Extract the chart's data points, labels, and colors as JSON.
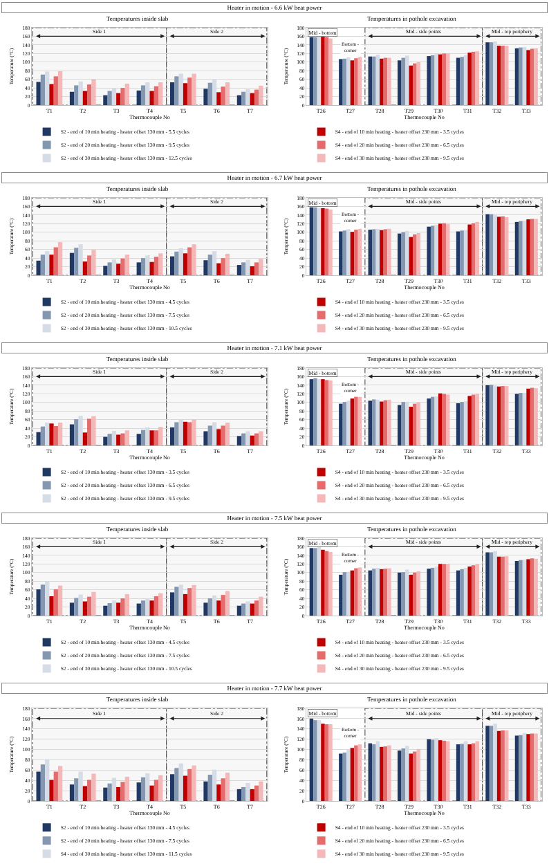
{
  "chart_data": [
    {
      "type": "bar",
      "title": "Heater in motion - 6.6 kW heat power",
      "subtitle": "Temperatures inside slab",
      "xlabel": "Thermocouple No",
      "ylabel": "Temperature (°C)",
      "categories": [
        "T1",
        "T2",
        "T3",
        "T4",
        "T5",
        "T6",
        "T7"
      ],
      "ylim": [
        0,
        180
      ],
      "yticks": [
        0,
        20,
        40,
        60,
        80,
        100,
        120,
        140,
        160,
        180
      ],
      "grid": "y",
      "legend": "bottom",
      "bands": [
        {
          "axis": "x",
          "from": "T1",
          "to": "T4",
          "label": "Side 1",
          "color": "#f7f7f7"
        },
        {
          "axis": "x",
          "from": "T5",
          "to": "T7",
          "label": "Side 2",
          "color": "#f7f7f7"
        }
      ],
      "series": [
        {
          "name": "S2 - end of 10 min heating - heater offset 130 mm - 5.5 cycles",
          "color": "#203864",
          "values": [
            54,
            31,
            23,
            34,
            53,
            38,
            23
          ]
        },
        {
          "name": "S2 - end of 20 min heating - heater offset 130 mm - 9.5 cycles",
          "color": "#8497b0",
          "values": [
            71,
            46,
            33,
            46,
            67,
            52,
            31
          ]
        },
        {
          "name": "S2 - end of 30 min heating - heater offset 130 mm - 12.5 cycles",
          "color": "#d6dce5",
          "values": [
            78,
            55,
            39,
            53,
            73,
            59,
            37
          ]
        },
        {
          "color": "#c00000",
          "values": [
            49,
            33,
            28,
            33,
            51,
            30,
            28
          ]
        },
        {
          "color": "#e46c6c",
          "values": [
            67,
            48,
            40,
            44,
            64,
            43,
            36
          ]
        },
        {
          "color": "#f4b8b8",
          "values": [
            79,
            60,
            50,
            53,
            73,
            53,
            45
          ]
        }
      ]
    },
    {
      "type": "bar",
      "title": "Temperatures in pothole excavation",
      "xlabel": "Thermocouple No",
      "ylabel": "Temperature (°C)",
      "categories": [
        "T26",
        "T27",
        "T28",
        "T29",
        "T30",
        "T31",
        "T32",
        "T33"
      ],
      "ylim": [
        0,
        180
      ],
      "yticks": [
        0,
        20,
        40,
        60,
        80,
        100,
        120,
        140,
        160,
        180
      ],
      "grid": "y",
      "legend": "bottom",
      "annotations": [
        "Mid - bottom",
        {
          "text": "Bottom - corner",
          "x": "T27",
          "y": 118
        }
      ],
      "bands": [
        {
          "axis": "x",
          "from": "T28",
          "to": "T31",
          "label": "Mid - side points",
          "color": "#f7f7f7"
        },
        {
          "axis": "x",
          "from": "T32",
          "to": "T33",
          "label": "Mid - top periphery",
          "color": "#f7f7f7"
        }
      ],
      "series": [
        {
          "color": "#203864",
          "values": [
            158,
            107,
            113,
            104,
            114,
            110,
            146,
            132
          ]
        },
        {
          "color": "#8497b0",
          "values": [
            158,
            108,
            113,
            110,
            116,
            112,
            146,
            134
          ]
        },
        {
          "color": "#d6dce5",
          "values": [
            160,
            111,
            117,
            115,
            120,
            116,
            148,
            135
          ]
        },
        {
          "name": "S4 - end of 10 min heating - heater offset 230 mm - 3.5 cycles",
          "color": "#c00000",
          "values": [
            159,
            104,
            108,
            92,
            118,
            122,
            138,
            128
          ]
        },
        {
          "name": "S4 - end of 20 min heating - heater offset 230 mm - 6.5 cycles",
          "color": "#e46c6c",
          "values": [
            158,
            109,
            110,
            97,
            120,
            124,
            138,
            131
          ]
        },
        {
          "name": "S4 - end of 30 min heating - heater offset 230 mm - 9.5 cycles",
          "color": "#f4b8b8",
          "values": [
            155,
            112,
            110,
            100,
            120,
            125,
            138,
            132
          ]
        }
      ]
    },
    {
      "type": "bar",
      "title": "Heater in motion - 6.7 kW heat power",
      "subtitle": "Temperatures inside slab",
      "xlabel": "Thermocouple No",
      "ylabel": "Temperature (°C)",
      "categories": [
        "T1",
        "T2",
        "T3",
        "T4",
        "T5",
        "T6",
        "T7"
      ],
      "ylim": [
        0,
        180
      ],
      "yticks": [
        0,
        20,
        40,
        60,
        80,
        100,
        120,
        140,
        160,
        180
      ],
      "grid": "y",
      "legend": "bottom",
      "bands": [
        {
          "axis": "x",
          "from": "T1",
          "to": "T4",
          "label": "Side 1",
          "color": "#f7f7f7"
        },
        {
          "axis": "x",
          "from": "T5",
          "to": "T7",
          "label": "Side 2",
          "color": "#f7f7f7"
        }
      ],
      "series": [
        {
          "name": "S2 - end of 10 min heating - heater offset 130 mm - 4.5 cycles",
          "color": "#203864",
          "values": [
            34,
            52,
            22,
            30,
            44,
            35,
            24
          ]
        },
        {
          "name": "S2 - end of 20 min heating - heater offset 130 mm - 7.5 cycles",
          "color": "#8497b0",
          "values": [
            48,
            64,
            30,
            40,
            55,
            48,
            30
          ]
        },
        {
          "name": "S2 - end of 30 min heating - heater offset 130 mm - 10.5 cycles",
          "color": "#d6dce5",
          "values": [
            56,
            72,
            37,
            46,
            63,
            56,
            36
          ]
        },
        {
          "color": "#c00000",
          "values": [
            48,
            32,
            27,
            31,
            51,
            28,
            21
          ]
        },
        {
          "color": "#e46c6c",
          "values": [
            65,
            46,
            39,
            43,
            65,
            40,
            30
          ]
        },
        {
          "color": "#f4b8b8",
          "values": [
            77,
            59,
            48,
            51,
            72,
            50,
            38
          ]
        }
      ]
    },
    {
      "type": "bar",
      "title": "Temperatures in pothole excavation",
      "xlabel": "Thermocouple No",
      "ylabel": "Temperature (°C)",
      "categories": [
        "T26",
        "T27",
        "T28",
        "T29",
        "T30",
        "T31",
        "T32",
        "T33"
      ],
      "ylim": [
        0,
        180
      ],
      "yticks": [
        0,
        20,
        40,
        60,
        80,
        100,
        120,
        140,
        160,
        180
      ],
      "grid": "y",
      "legend": "bottom",
      "annotations": [
        "Mid - bottom",
        {
          "text": "Bottom - corner",
          "x": "T27",
          "y": 118
        }
      ],
      "bands": [
        {
          "axis": "x",
          "from": "T28",
          "to": "T31",
          "label": "Mid - side points",
          "color": "#f7f7f7"
        },
        {
          "axis": "x",
          "from": "T32",
          "to": "T33",
          "label": "Mid - top periphery",
          "color": "#f7f7f7"
        }
      ],
      "series": [
        {
          "color": "#203864",
          "values": [
            158,
            102,
            106,
            97,
            113,
            102,
            142,
            124
          ]
        },
        {
          "color": "#8497b0",
          "values": [
            158,
            104,
            107,
            100,
            115,
            104,
            142,
            126
          ]
        },
        {
          "color": "#d6dce5",
          "values": [
            157,
            107,
            108,
            103,
            117,
            105,
            140,
            127
          ]
        },
        {
          "name": "S4 - end of 10 min heating - heater offset 230 mm - 3.5 cycles",
          "color": "#c00000",
          "values": [
            156,
            101,
            105,
            89,
            120,
            118,
            136,
            130
          ]
        },
        {
          "name": "S4 - end of 20 min heating - heater offset 230 mm - 6.5 cycles",
          "color": "#e46c6c",
          "values": [
            155,
            106,
            107,
            95,
            121,
            121,
            137,
            131
          ]
        },
        {
          "name": "S4 - end of 30 min heating - heater offset 230 mm - 9.5 cycles",
          "color": "#f4b8b8",
          "values": [
            153,
            108,
            108,
            98,
            119,
            124,
            135,
            131
          ]
        }
      ]
    },
    {
      "type": "bar",
      "title": "Heater in motion - 7.1 kW heat power",
      "subtitle": "Temperatures inside slab",
      "xlabel": "Thermocouple No",
      "ylabel": "Temperature (°C)",
      "categories": [
        "T1",
        "T2",
        "T3",
        "T4",
        "T5",
        "T6",
        "T7"
      ],
      "ylim": [
        0,
        180
      ],
      "yticks": [
        0,
        20,
        40,
        60,
        80,
        100,
        120,
        140,
        160,
        180
      ],
      "grid": "y",
      "legend": "bottom",
      "bands": [
        {
          "axis": "x",
          "from": "T1",
          "to": "T4",
          "label": "Side 1",
          "color": "#f7f7f7"
        },
        {
          "axis": "x",
          "from": "T5",
          "to": "T7",
          "label": "Side 2",
          "color": "#f7f7f7"
        }
      ],
      "series": [
        {
          "name": "S2 - end of 10 min heating - heater offset 130 mm - 3.5 cycles",
          "color": "#203864",
          "values": [
            31,
            49,
            20,
            27,
            42,
            33,
            22
          ]
        },
        {
          "name": "S2 - end of 20 min heating - heater offset 130 mm - 6.5 cycles",
          "color": "#8497b0",
          "values": [
            44,
            61,
            27,
            36,
            54,
            46,
            28
          ]
        },
        {
          "name": "S2 - end of 30 min heating - heater offset 130 mm - 9.5 cycles",
          "color": "#d6dce5",
          "values": [
            53,
            69,
            34,
            42,
            61,
            54,
            33
          ]
        },
        {
          "color": "#c00000",
          "values": [
            51,
            30,
            25,
            35,
            55,
            38,
            23
          ]
        },
        {
          "color": "#e46c6c",
          "values": [
            45,
            62,
            28,
            35,
            54,
            46,
            28
          ]
        },
        {
          "color": "#f4b8b8",
          "values": [
            53,
            68,
            35,
            43,
            60,
            53,
            33
          ]
        }
      ]
    },
    {
      "type": "bar",
      "title": "Temperatures in pothole excavation",
      "xlabel": "Thermocouple No",
      "ylabel": "Temperature (°C)",
      "categories": [
        "T26",
        "T27",
        "T28",
        "T29",
        "T30",
        "T31",
        "T32",
        "T33"
      ],
      "ylim": [
        0,
        180
      ],
      "yticks": [
        0,
        20,
        40,
        60,
        80,
        100,
        120,
        140,
        160,
        180
      ],
      "grid": "y",
      "legend": "bottom",
      "annotations": [
        "Mid - bottom",
        {
          "text": "Bottom - corner",
          "x": "T27",
          "y": 118
        }
      ],
      "bands": [
        {
          "axis": "x",
          "from": "T28",
          "to": "T31",
          "label": "Mid - side points",
          "color": "#f7f7f7"
        },
        {
          "axis": "x",
          "from": "T32",
          "to": "T33",
          "label": "Mid - top periphery",
          "color": "#f7f7f7"
        }
      ],
      "series": [
        {
          "color": "#203864",
          "values": [
            154,
            97,
            104,
            94,
            109,
            98,
            140,
            120
          ]
        },
        {
          "color": "#8497b0",
          "values": [
            156,
            101,
            107,
            101,
            113,
            101,
            141,
            122
          ]
        },
        {
          "color": "#d6dce5",
          "values": [
            154,
            104,
            106,
            102,
            114,
            103,
            139,
            122
          ]
        },
        {
          "name": "S4 - end of 10 min heating - heater offset 230 mm - 3.5 cycles",
          "color": "#c00000",
          "values": [
            154,
            109,
            102,
            90,
            121,
            115,
            137,
            132
          ]
        },
        {
          "name": "S4 - end of 20 min heating - heater offset 230 mm - 6.5 cycles",
          "color": "#e46c6c",
          "values": [
            152,
            113,
            105,
            97,
            120,
            118,
            138,
            134
          ]
        },
        {
          "name": "S4 - end of 30 min heating - heater offset 230 mm - 9.5 cycles",
          "color": "#f4b8b8",
          "values": [
            151,
            113,
            106,
            100,
            118,
            120,
            138,
            133
          ]
        }
      ]
    },
    {
      "type": "bar",
      "title": "Heater in motion - 7.5 kW heat power",
      "subtitle": "Temperatures inside slab",
      "xlabel": "Thermocouple No",
      "ylabel": "Temperature (°C)",
      "categories": [
        "T1",
        "T2",
        "T3",
        "T4",
        "T5",
        "T6",
        "T7"
      ],
      "ylim": [
        0,
        180
      ],
      "yticks": [
        0,
        20,
        40,
        60,
        80,
        100,
        120,
        140,
        160,
        180
      ],
      "grid": "y",
      "legend": "bottom",
      "bands": [
        {
          "axis": "x",
          "from": "T1",
          "to": "T4",
          "label": "Side 1",
          "color": "#f7f7f7"
        },
        {
          "axis": "x",
          "from": "T5",
          "to": "T7",
          "label": "Side 2",
          "color": "#f7f7f7"
        }
      ],
      "series": [
        {
          "name": "S2 - end of 10 min heating - heater offset 130 mm - 4.5 cycles",
          "color": "#203864",
          "values": [
            61,
            30,
            23,
            28,
            54,
            30,
            23
          ]
        },
        {
          "name": "S2 - end of 20 min heating - heater offset 130 mm - 7.5 cycles",
          "color": "#8497b0",
          "values": [
            72,
            41,
            29,
            35,
            67,
            40,
            28
          ]
        },
        {
          "name": "S2 - end of 30 min heating - heater offset 130 mm - 10.5 cycles",
          "color": "#d6dce5",
          "values": [
            79,
            49,
            35,
            40,
            72,
            47,
            33
          ]
        },
        {
          "color": "#c00000",
          "values": [
            45,
            33,
            30,
            35,
            50,
            35,
            28
          ]
        },
        {
          "color": "#e46c6c",
          "values": [
            61,
            44,
            40,
            45,
            64,
            48,
            35
          ]
        },
        {
          "color": "#f4b8b8",
          "values": [
            70,
            55,
            50,
            52,
            71,
            57,
            44
          ]
        }
      ]
    },
    {
      "type": "bar",
      "title": "Temperatures in pothole excavation",
      "xlabel": "Thermocouple No",
      "ylabel": "Temperature (°C)",
      "categories": [
        "T26",
        "T27",
        "T28",
        "T29",
        "T30",
        "T31",
        "T32",
        "T33"
      ],
      "ylim": [
        0,
        180
      ],
      "yticks": [
        0,
        20,
        40,
        60,
        80,
        100,
        120,
        140,
        160,
        180
      ],
      "grid": "y",
      "legend": "bottom",
      "annotations": [
        "Mid - bottom",
        {
          "text": "Bottom - corner",
          "x": "T27",
          "y": 118
        }
      ],
      "bands": [
        {
          "axis": "x",
          "from": "T28",
          "to": "T31",
          "label": "Mid - side points",
          "color": "#f7f7f7"
        },
        {
          "axis": "x",
          "from": "T32",
          "to": "T33",
          "label": "Mid - top periphery",
          "color": "#f7f7f7"
        }
      ],
      "series": [
        {
          "color": "#203864",
          "values": [
            157,
            95,
            105,
            100,
            109,
            105,
            147,
            127
          ]
        },
        {
          "color": "#8497b0",
          "values": [
            157,
            101,
            109,
            101,
            111,
            108,
            147,
            129
          ]
        },
        {
          "color": "#d6dce5",
          "values": [
            160,
            102,
            111,
            107,
            114,
            111,
            150,
            130
          ]
        },
        {
          "name": "S4 - end of 10 min heating - heater offset 230 mm - 3.5 cycles",
          "color": "#c00000",
          "values": [
            153,
            105,
            108,
            95,
            120,
            114,
            137,
            131
          ]
        },
        {
          "name": "S4 - end of 20 min heating - heater offset 230 mm - 6.5 cycles",
          "color": "#e46c6c",
          "values": [
            150,
            110,
            109,
            100,
            120,
            117,
            137,
            133
          ]
        },
        {
          "name": "S4 - end of 30 min heating - heater offset 230 mm - 9.5 cycles",
          "color": "#f4b8b8",
          "values": [
            148,
            112,
            110,
            103,
            120,
            120,
            138,
            132
          ]
        }
      ]
    },
    {
      "type": "bar",
      "title": "Heater in motion - 7.7 kW heat power",
      "subtitle": "Temperatures inside slab",
      "xlabel": "Thermocouple No",
      "ylabel": "Temperature (°C)",
      "categories": [
        "T1",
        "T2",
        "T3",
        "T4",
        "T5",
        "T6",
        "T7"
      ],
      "ylim": [
        0,
        180
      ],
      "yticks": [
        0,
        20,
        40,
        60,
        80,
        100,
        120,
        140,
        160,
        180
      ],
      "grid": "y",
      "legend": "bottom",
      "bands": [
        {
          "axis": "x",
          "from": "T1",
          "to": "T4",
          "label": "Side 1",
          "color": "#f7f7f7"
        },
        {
          "axis": "x",
          "from": "T5",
          "to": "T7",
          "label": "Side 2",
          "color": "#f7f7f7"
        }
      ],
      "series": [
        {
          "name": "S2 - end of 10 min heating - heater offset 130 mm - 4.5 cycles",
          "color": "#203864",
          "values": [
            57,
            32,
            26,
            36,
            52,
            38,
            23
          ]
        },
        {
          "name": "S2 - end of 20 min heating - heater offset 130 mm - 7.5 cycles",
          "color": "#8497b0",
          "values": [
            71,
            44,
            34,
            46,
            64,
            51,
            27
          ]
        },
        {
          "name": "S4 - end of 30 min heating - heater offset 130 mm - 11.5 cycles",
          "color": "#d6dce5",
          "values": [
            81,
            57,
            45,
            54,
            73,
            61,
            35
          ]
        },
        {
          "color": "#c00000",
          "values": [
            41,
            29,
            27,
            30,
            49,
            32,
            23
          ]
        },
        {
          "color": "#e46c6c",
          "values": [
            57,
            41,
            37,
            41,
            62,
            44,
            30
          ]
        },
        {
          "color": "#f4b8b8",
          "values": [
            68,
            53,
            47,
            50,
            69,
            55,
            38
          ]
        }
      ]
    },
    {
      "type": "bar",
      "title": "Temperatures in pothole excavation",
      "xlabel": "Thermocouple No",
      "ylabel": "Temperature (°C)",
      "categories": [
        "T26",
        "T27",
        "T28",
        "T29",
        "T30",
        "T31",
        "T32",
        "T33"
      ],
      "ylim": [
        0,
        180
      ],
      "yticks": [
        0,
        20,
        40,
        60,
        80,
        100,
        120,
        140,
        160,
        180
      ],
      "grid": "y",
      "legend": "bottom",
      "annotations": [
        "Mid - bottom",
        {
          "text": "Bottom - corner",
          "x": "T27",
          "y": 118
        }
      ],
      "bands": [
        {
          "axis": "x",
          "from": "T28",
          "to": "T31",
          "label": "Mid - side points",
          "color": "#f7f7f7"
        },
        {
          "axis": "x",
          "from": "T32",
          "to": "T33",
          "label": "Mid - top periphery",
          "color": "#f7f7f7"
        }
      ],
      "series": [
        {
          "color": "#203864",
          "values": [
            160,
            92,
            112,
            98,
            120,
            110,
            146,
            127
          ]
        },
        {
          "color": "#8497b0",
          "values": [
            157,
            94,
            110,
            102,
            119,
            111,
            146,
            128
          ]
        },
        {
          "color": "#d6dce5",
          "values": [
            157,
            101,
            116,
            107,
            122,
            116,
            150,
            132
          ]
        },
        {
          "name": "S4 - end of 10 min heating - heater offset 230 mm - 3.5 cycles",
          "color": "#c00000",
          "values": [
            150,
            103,
            105,
            92,
            118,
            110,
            136,
            130
          ]
        },
        {
          "name": "S4 - end of 20 min heating - heater offset 230 mm - 6.5 cycles",
          "color": "#e46c6c",
          "values": [
            149,
            108,
            106,
            96,
            117,
            112,
            137,
            131
          ]
        },
        {
          "name": "S4 - end of 30 min heating - heater offset 230 mm - 9.5 cycles",
          "color": "#f4b8b8",
          "values": [
            149,
            110,
            108,
            101,
            116,
            116,
            137,
            131
          ]
        }
      ]
    }
  ]
}
